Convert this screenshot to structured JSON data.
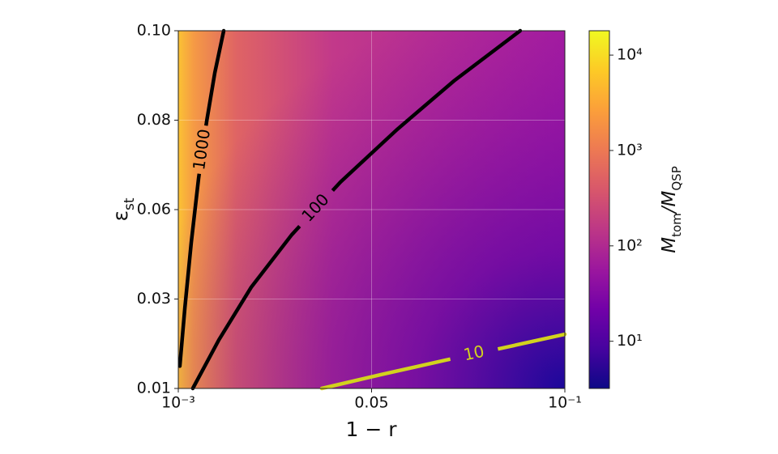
{
  "chart_data": {
    "type": "heatmap-contour",
    "x_label": "1 − r",
    "y_label": {
      "symbol": "ε",
      "subscript": "st"
    },
    "colorbar_label": [
      {
        "symbol": "M",
        "subscript": "tom"
      },
      {
        "symbol": "/M",
        "subscript": "QSP"
      }
    ],
    "xlim": [
      0,
      2
    ],
    "xticks": [
      {
        "value": 0,
        "label": "10⁻³"
      },
      {
        "value": 1,
        "label": "0.05"
      },
      {
        "value": 2,
        "label": "10⁻¹"
      }
    ],
    "ylim": [
      0,
      4
    ],
    "yticks": [
      {
        "value": 0,
        "label": "0.01"
      },
      {
        "value": 1,
        "label": "0.03"
      },
      {
        "value": 2,
        "label": "0.06"
      },
      {
        "value": 3,
        "label": "0.08"
      },
      {
        "value": 4,
        "label": "0.10"
      }
    ],
    "grid": true,
    "colormap": "plasma",
    "log_color_scale": true,
    "clim": [
      3.2,
      18000
    ],
    "cticks": [
      {
        "value": 10,
        "label": "10¹"
      },
      {
        "value": 100,
        "label": "10²"
      },
      {
        "value": 1000,
        "label": "10³"
      },
      {
        "value": 10000,
        "label": "10⁴"
      }
    ],
    "contours": [
      {
        "level": 1000,
        "color": "#000000",
        "x": [
          0.008,
          0.034,
          0.067,
          0.105,
          0.147,
          0.189,
          0.235
        ],
        "y": [
          0.25,
          0.9,
          1.63,
          2.35,
          2.99,
          3.53,
          4.0
        ]
      },
      {
        "level": 100,
        "color": "#000000",
        "x": [
          0.075,
          0.21,
          0.377,
          0.587,
          0.839,
          1.132,
          1.426,
          1.769
        ],
        "y": [
          0,
          0.543,
          1.131,
          1.719,
          2.308,
          2.896,
          3.439,
          4.0
        ]
      },
      {
        "level": 10,
        "color": "#d2d21e",
        "x": [
          0.742,
          1.048,
          1.384,
          1.677,
          2.0
        ],
        "y": [
          0,
          0.154,
          0.317,
          0.452,
          0.606
        ]
      }
    ]
  }
}
